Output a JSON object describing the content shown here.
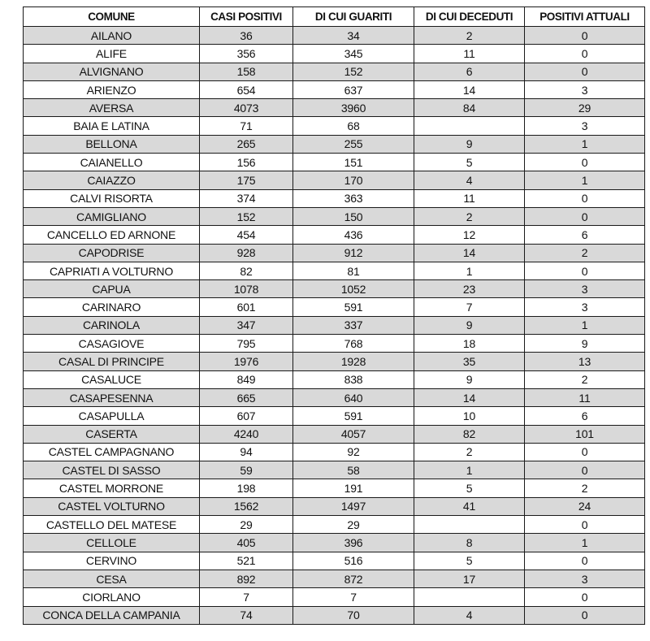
{
  "table": {
    "headers": [
      "COMUNE",
      "CASI POSITIVI",
      "DI CUI GUARITI",
      "DI CUI DECEDUTI",
      "POSITIVI ATTUALI"
    ],
    "rows": [
      [
        "AILANO",
        "36",
        "34",
        "2",
        "0"
      ],
      [
        "ALIFE",
        "356",
        "345",
        "11",
        "0"
      ],
      [
        "ALVIGNANO",
        "158",
        "152",
        "6",
        "0"
      ],
      [
        "ARIENZO",
        "654",
        "637",
        "14",
        "3"
      ],
      [
        "AVERSA",
        "4073",
        "3960",
        "84",
        "29"
      ],
      [
        "BAIA E LATINA",
        "71",
        "68",
        "",
        "3"
      ],
      [
        "BELLONA",
        "265",
        "255",
        "9",
        "1"
      ],
      [
        "CAIANELLO",
        "156",
        "151",
        "5",
        "0"
      ],
      [
        "CAIAZZO",
        "175",
        "170",
        "4",
        "1"
      ],
      [
        "CALVI RISORTA",
        "374",
        "363",
        "11",
        "0"
      ],
      [
        "CAMIGLIANO",
        "152",
        "150",
        "2",
        "0"
      ],
      [
        "CANCELLO ED ARNONE",
        "454",
        "436",
        "12",
        "6"
      ],
      [
        "CAPODRISE",
        "928",
        "912",
        "14",
        "2"
      ],
      [
        "CAPRIATI A VOLTURNO",
        "82",
        "81",
        "1",
        "0"
      ],
      [
        "CAPUA",
        "1078",
        "1052",
        "23",
        "3"
      ],
      [
        "CARINARO",
        "601",
        "591",
        "7",
        "3"
      ],
      [
        "CARINOLA",
        "347",
        "337",
        "9",
        "1"
      ],
      [
        "CASAGIOVE",
        "795",
        "768",
        "18",
        "9"
      ],
      [
        "CASAL DI PRINCIPE",
        "1976",
        "1928",
        "35",
        "13"
      ],
      [
        "CASALUCE",
        "849",
        "838",
        "9",
        "2"
      ],
      [
        "CASAPESENNA",
        "665",
        "640",
        "14",
        "11"
      ],
      [
        "CASAPULLA",
        "607",
        "591",
        "10",
        "6"
      ],
      [
        "CASERTA",
        "4240",
        "4057",
        "82",
        "101"
      ],
      [
        "CASTEL CAMPAGNANO",
        "94",
        "92",
        "2",
        "0"
      ],
      [
        "CASTEL DI SASSO",
        "59",
        "58",
        "1",
        "0"
      ],
      [
        "CASTEL MORRONE",
        "198",
        "191",
        "5",
        "2"
      ],
      [
        "CASTEL VOLTURNO",
        "1562",
        "1497",
        "41",
        "24"
      ],
      [
        "CASTELLO DEL MATESE",
        "29",
        "29",
        "",
        "0"
      ],
      [
        "CELLOLE",
        "405",
        "396",
        "8",
        "1"
      ],
      [
        "CERVINO",
        "521",
        "516",
        "5",
        "0"
      ],
      [
        "CESA",
        "892",
        "872",
        "17",
        "3"
      ],
      [
        "CIORLANO",
        "7",
        "7",
        "",
        "0"
      ],
      [
        "CONCA DELLA CAMPANIA",
        "74",
        "70",
        "4",
        "0"
      ]
    ]
  },
  "colors": {
    "shaded_row": "#d9d9d9",
    "border": "#1a1a1a"
  }
}
